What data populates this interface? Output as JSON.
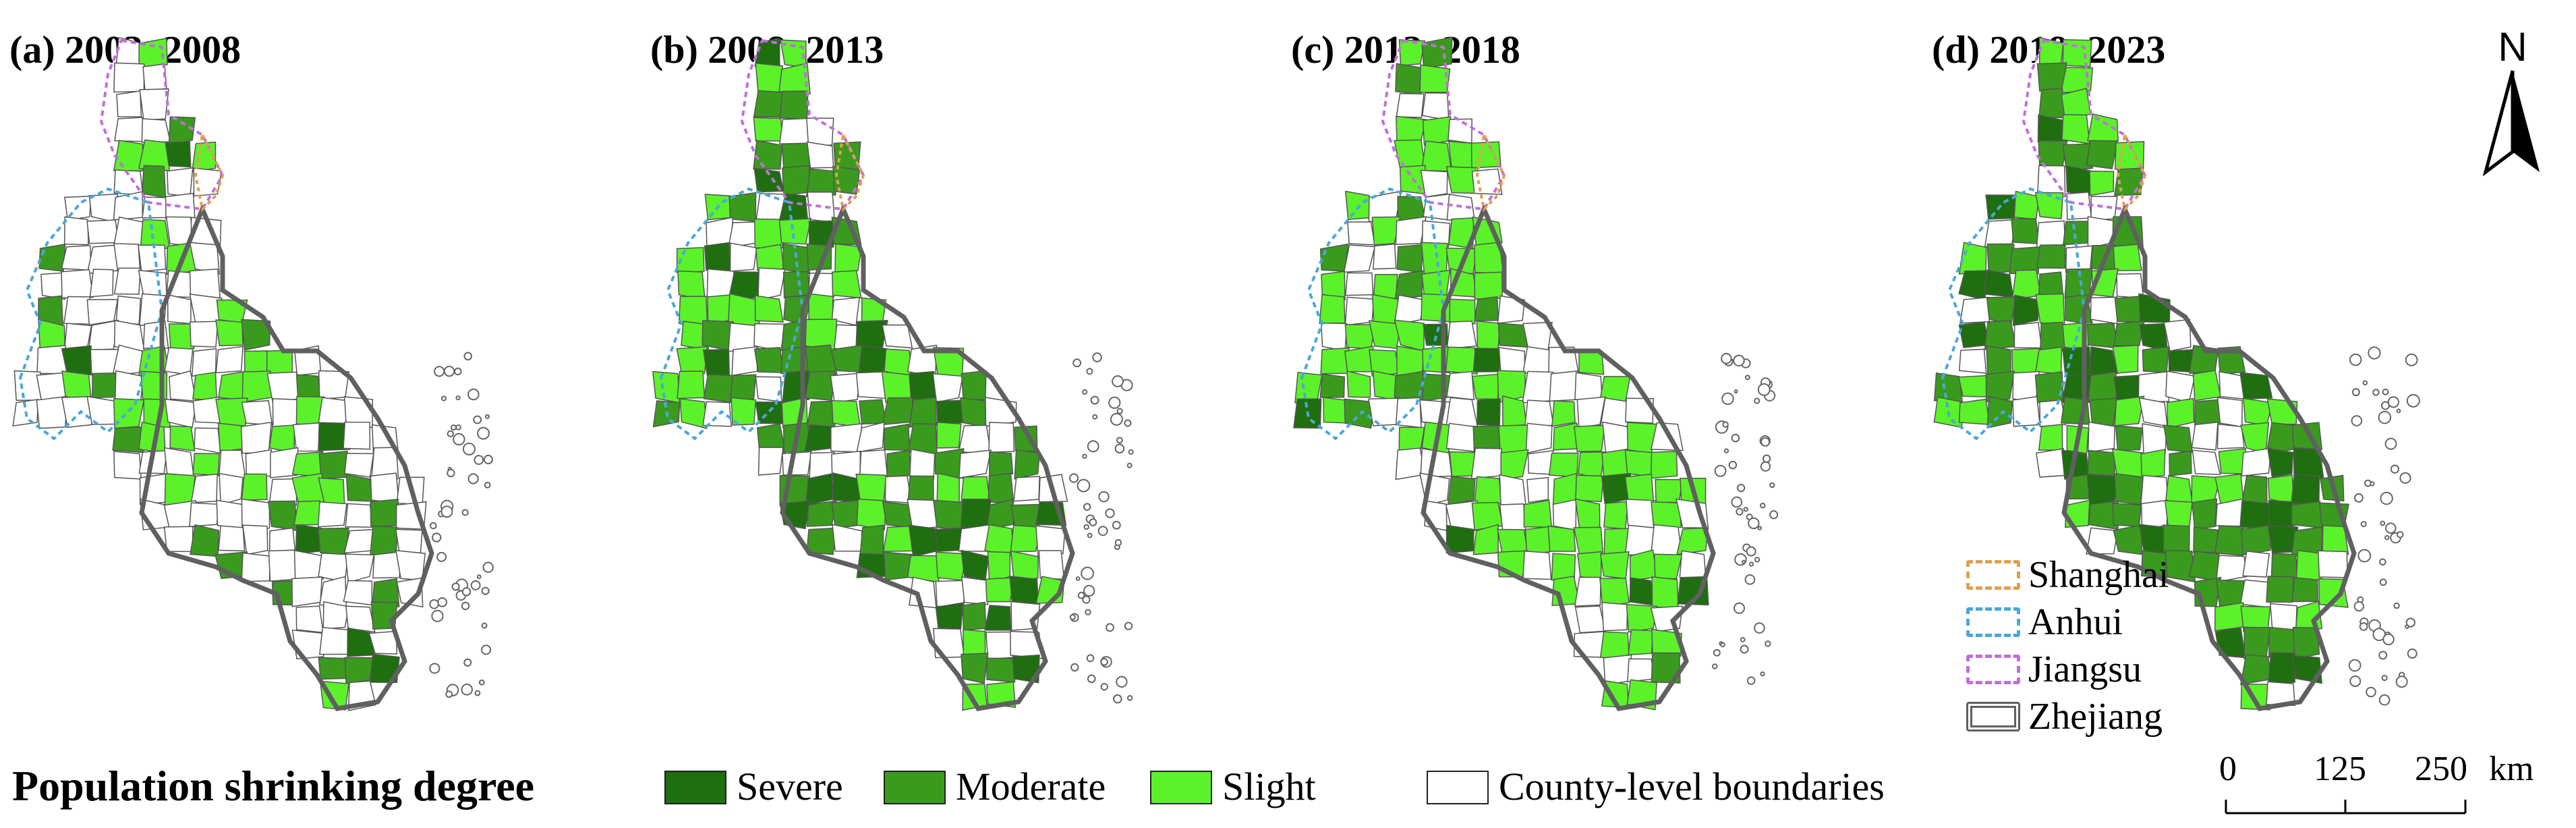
{
  "panels": [
    {
      "title": "(a) 2003–2008"
    },
    {
      "title": "(b) 2008–2013"
    },
    {
      "title": "(c) 2013–2018"
    },
    {
      "title": "(d) 2018–2023"
    }
  ],
  "legend": {
    "title": "Population shrinking degree",
    "classes": [
      {
        "label": "Severe",
        "color": "#1f6e0f"
      },
      {
        "label": "Moderate",
        "color": "#3a9a1e"
      },
      {
        "label": "Slight",
        "color": "#5cf22a"
      }
    ],
    "county_label": "County-level boundaries",
    "county_color": "#ffffff"
  },
  "provinces": [
    {
      "label": "Shanghai",
      "color": "#e0a050"
    },
    {
      "label": "Anhui",
      "color": "#4aa8d8"
    },
    {
      "label": "Jiangsu",
      "color": "#c070d8"
    },
    {
      "label": "Zhejiang",
      "color": "#606060"
    }
  ],
  "north_arrow": {
    "label": "N"
  },
  "scale_bar": {
    "ticks": [
      "0",
      "125",
      "250"
    ],
    "unit": "km"
  },
  "colors": {
    "severe": "#1f6e0f",
    "moderate": "#3a9a1e",
    "slight": "#5cf22a",
    "none": "#ffffff",
    "boundary": "#555555"
  }
}
